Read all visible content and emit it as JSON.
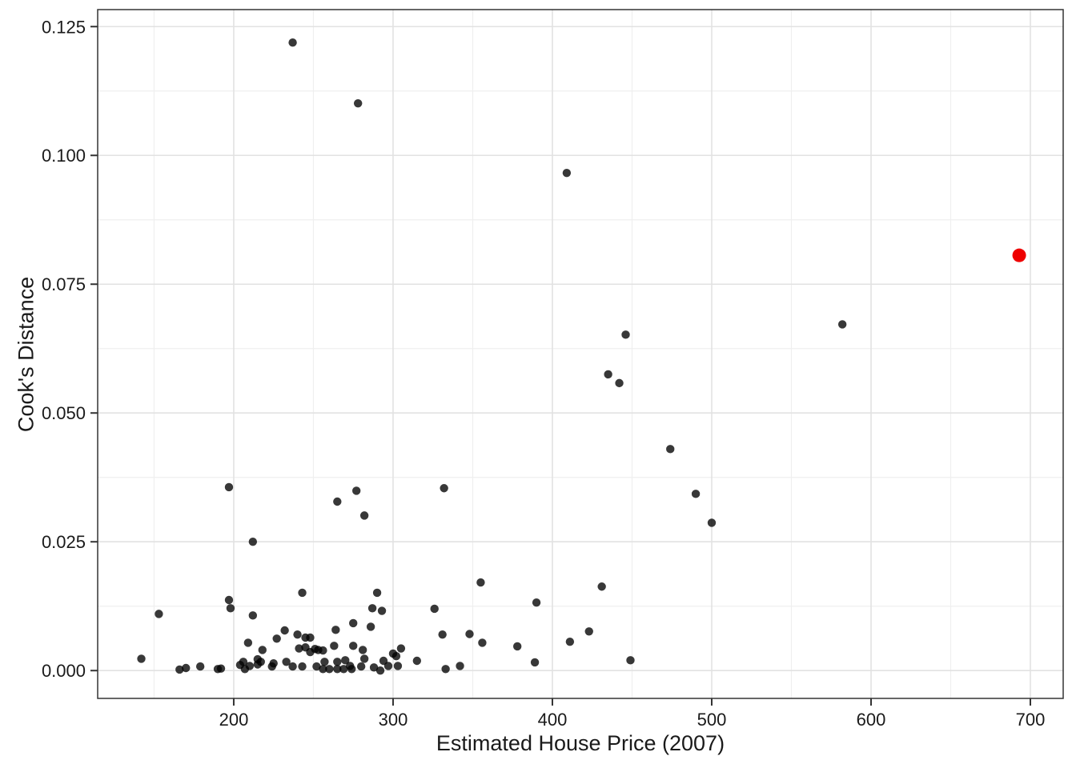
{
  "chart_data": {
    "type": "scatter",
    "title": "",
    "xlabel": "Estimated House Price (2007)",
    "ylabel": "Cook's Distance",
    "xlim": [
      114.6,
      720.6
    ],
    "ylim": [
      -0.0054,
      0.1283
    ],
    "x_ticks": [
      200,
      300,
      400,
      500,
      600,
      700
    ],
    "x_tick_labels": [
      "200",
      "300",
      "400",
      "500",
      "600",
      "700"
    ],
    "y_ticks": [
      0.0,
      0.025,
      0.05,
      0.075,
      0.1,
      0.125
    ],
    "y_tick_labels": [
      "0.000",
      "0.025",
      "0.050",
      "0.075",
      "0.100",
      "0.125"
    ],
    "x_minor": [
      150,
      250,
      350,
      450,
      550,
      650
    ],
    "y_minor": [
      0.0125,
      0.0375,
      0.0625,
      0.0875,
      0.1125
    ],
    "grid": true,
    "legend": "none",
    "colors": {
      "point": "#000000",
      "point_opacity": 0.78,
      "highlight": "#EE0000",
      "grid_major": "#E2E2E2",
      "grid_minor": "#EFEFEF",
      "panel_border": "#333333",
      "tick": "#333333",
      "text": "#1A1A1A"
    },
    "series": [
      {
        "name": "observations",
        "point_name": "data-point",
        "color": "#000000",
        "opacity": 0.78,
        "radius": 5.2,
        "points": [
          [
            142,
            0.0023
          ],
          [
            153,
            0.011
          ],
          [
            166,
            0.0002
          ],
          [
            170,
            0.0005
          ],
          [
            179,
            0.0008
          ],
          [
            190,
            0.0003
          ],
          [
            192,
            0.0004
          ],
          [
            197,
            0.0137
          ],
          [
            198,
            0.0121
          ],
          [
            197,
            0.0356
          ],
          [
            204,
            0.0011
          ],
          [
            206,
            0.0017
          ],
          [
            207,
            0.0003
          ],
          [
            209,
            0.0054
          ],
          [
            210,
            0.0009
          ],
          [
            212,
            0.0107
          ],
          [
            212,
            0.025
          ],
          [
            215,
            0.0012
          ],
          [
            215,
            0.0022
          ],
          [
            217,
            0.0017
          ],
          [
            218,
            0.004
          ],
          [
            224,
            0.0008
          ],
          [
            225,
            0.0014
          ],
          [
            227,
            0.0062
          ],
          [
            232,
            0.0078
          ],
          [
            233,
            0.0017
          ],
          [
            237,
            0.0008
          ],
          [
            237,
            0.1219
          ],
          [
            240,
            0.007
          ],
          [
            241,
            0.0043
          ],
          [
            243,
            0.0151
          ],
          [
            243,
            0.0008
          ],
          [
            245,
            0.0045
          ],
          [
            245,
            0.0064
          ],
          [
            248,
            0.0064
          ],
          [
            248,
            0.0036
          ],
          [
            251,
            0.0042
          ],
          [
            252,
            0.0008
          ],
          [
            253,
            0.004
          ],
          [
            256,
            0.0039
          ],
          [
            256,
            0.0003
          ],
          [
            257,
            0.0017
          ],
          [
            260,
            0.0003
          ],
          [
            263,
            0.0048
          ],
          [
            264,
            0.0079
          ],
          [
            265,
            0.0017
          ],
          [
            265,
            0.0003
          ],
          [
            265,
            0.0328
          ],
          [
            269,
            0.0003
          ],
          [
            270,
            0.002
          ],
          [
            273,
            0.0009
          ],
          [
            274,
            0.0003
          ],
          [
            275,
            0.0092
          ],
          [
            275,
            0.0048
          ],
          [
            277,
            0.0349
          ],
          [
            278,
            0.1101
          ],
          [
            280,
            0.0008
          ],
          [
            281,
            0.004
          ],
          [
            282,
            0.0023
          ],
          [
            282,
            0.0301
          ],
          [
            286,
            0.0085
          ],
          [
            287,
            0.0121
          ],
          [
            288,
            0.0006
          ],
          [
            290,
            0.0151
          ],
          [
            292,
            0.0
          ],
          [
            293,
            0.0116
          ],
          [
            294,
            0.0019
          ],
          [
            297,
            0.0009
          ],
          [
            300,
            0.0033
          ],
          [
            302,
            0.0028
          ],
          [
            303,
            0.0009
          ],
          [
            305,
            0.0043
          ],
          [
            315,
            0.0019
          ],
          [
            326,
            0.012
          ],
          [
            331,
            0.007
          ],
          [
            332,
            0.0354
          ],
          [
            333,
            0.0003
          ],
          [
            342,
            0.0009
          ],
          [
            348,
            0.0071
          ],
          [
            355,
            0.0171
          ],
          [
            356,
            0.0054
          ],
          [
            378,
            0.0047
          ],
          [
            389,
            0.0016
          ],
          [
            390,
            0.0132
          ],
          [
            409,
            0.0966
          ],
          [
            411,
            0.0056
          ],
          [
            423,
            0.0076
          ],
          [
            431,
            0.0163
          ],
          [
            435,
            0.0575
          ],
          [
            442,
            0.0558
          ],
          [
            446,
            0.0652
          ],
          [
            449,
            0.002
          ],
          [
            474,
            0.043
          ],
          [
            490,
            0.0343
          ],
          [
            500,
            0.0287
          ],
          [
            582,
            0.0672
          ]
        ]
      },
      {
        "name": "highlighted-observation",
        "point_name": "highlighted-data-point",
        "color": "#EE0000",
        "opacity": 1,
        "radius": 8.5,
        "points": [
          [
            693,
            0.0806
          ]
        ]
      }
    ]
  }
}
